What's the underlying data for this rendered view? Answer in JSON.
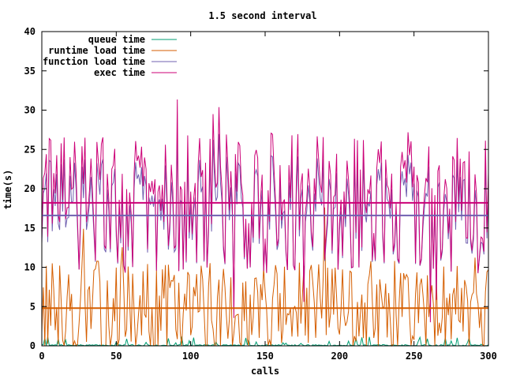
{
  "chart_data": {
    "type": "line",
    "title": "1.5 second interval",
    "xlabel": "calls",
    "ylabel": "time(s)",
    "xlim": [
      0,
      300
    ],
    "ylim": [
      0,
      40
    ],
    "xticks": [
      0,
      50,
      100,
      150,
      200,
      250,
      300
    ],
    "yticks": [
      0,
      5,
      10,
      15,
      20,
      25,
      30,
      35,
      40
    ],
    "grid": false,
    "legend_position": "top-left",
    "series": [
      {
        "name": "queue time",
        "color": "#009e73",
        "style": "noisy",
        "mean": 0.15,
        "amp": 0.6,
        "seed": 7
      },
      {
        "name": "runtime load time",
        "color": "#d55e00",
        "style": "noisy",
        "mean": 4.8,
        "amp": 6.0,
        "seed": 13
      },
      {
        "name": "function load time",
        "color": "#7060b0",
        "style": "noisy",
        "mean": 16.8,
        "amp": 7.5,
        "seed": 29
      },
      {
        "name": "exec time",
        "color": "#cc0077",
        "style": "noisy",
        "mean": 18.2,
        "amp": 9.0,
        "seed": 29
      }
    ],
    "reference_lines": [
      {
        "y": 18.2,
        "color": "#cc0077"
      },
      {
        "y": 16.6,
        "color": "#7060b0"
      },
      {
        "y": 4.8,
        "color": "#d55e00"
      }
    ]
  }
}
